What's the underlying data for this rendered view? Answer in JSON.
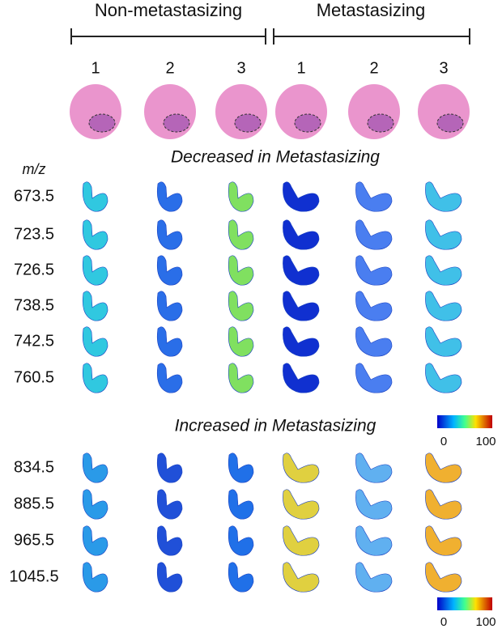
{
  "header": {
    "groups": [
      {
        "label": "Non-metastasizing",
        "columns": [
          "1",
          "2",
          "3"
        ]
      },
      {
        "label": "Metastasizing",
        "columns": [
          "1",
          "2",
          "3"
        ]
      }
    ]
  },
  "row_header": "m/z",
  "sections": [
    {
      "title": "Decreased in Metastasizing",
      "rows": [
        "673.5",
        "723.5",
        "726.5",
        "738.5",
        "742.5",
        "760.5"
      ]
    },
    {
      "title": "Increased in Metastasizing",
      "rows": [
        "834.5",
        "885.5",
        "965.5",
        "1045.5"
      ]
    }
  ],
  "colorbars": [
    {
      "min": "0",
      "max": "100"
    },
    {
      "min": "0",
      "max": "100"
    }
  ]
}
